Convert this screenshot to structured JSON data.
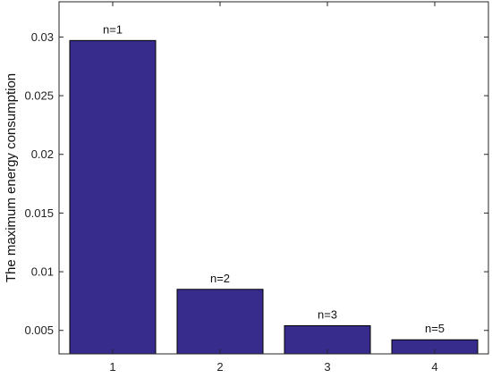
{
  "chart_data": {
    "type": "bar",
    "categories": [
      "1",
      "2",
      "3",
      "4"
    ],
    "values": [
      0.0297,
      0.0085,
      0.0054,
      0.0042
    ],
    "bar_labels": [
      "n=1",
      "n=2",
      "n=3",
      "n=5"
    ],
    "xlabel": "",
    "ylabel": "The maximum energy consumption",
    "ylim": [
      0.003,
      0.033
    ],
    "yticks": [
      0.005,
      0.01,
      0.015,
      0.02,
      0.025,
      0.03
    ],
    "ytick_labels": [
      "0.005",
      "0.01",
      "0.015",
      "0.02",
      "0.025",
      "0.03"
    ],
    "grid": false,
    "bar_color": "#372c8c"
  }
}
